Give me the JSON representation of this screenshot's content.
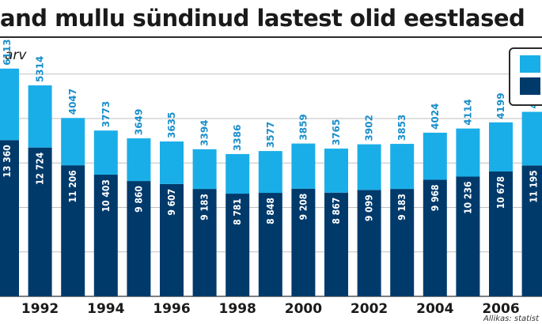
{
  "title": "and mullu sündinud lastest olid eestlased",
  "unit_label": "arv",
  "source": "Allikas: statist",
  "chart_data": {
    "type": "bar",
    "stacked": true,
    "categories": [
      "1991",
      "1992",
      "1993",
      "1994",
      "1995",
      "1996",
      "1997",
      "1998",
      "1999",
      "2000",
      "2001",
      "2002",
      "2003",
      "2004",
      "2005",
      "2006",
      "2007"
    ],
    "x_tick_labels": [
      "1992",
      "1994",
      "1996",
      "1998",
      "2000",
      "2002",
      "2004",
      "2006"
    ],
    "series": [
      {
        "values": [
          13360,
          12724,
          11206,
          10403,
          9860,
          9607,
          9183,
          8781,
          8848,
          9208,
          8867,
          9099,
          9183,
          9968,
          10236,
          10678,
          11195
        ],
        "color": "#003a6b"
      },
      {
        "values": [
          6113,
          5314,
          4047,
          3773,
          3649,
          3635,
          3394,
          3386,
          3577,
          3859,
          3765,
          3902,
          3853,
          4024,
          4114,
          4199,
          4580
        ],
        "color": "#1aaee8"
      }
    ],
    "value_labels": {
      "bottom": [
        "13 360",
        "12 724",
        "11 206",
        "10 403",
        "9 860",
        "9 607",
        "9 183",
        "8 781",
        "8 848",
        "9 208",
        "8 867",
        "9 099",
        "9 183",
        "9 968",
        "10 236",
        "10 678",
        "11 195"
      ],
      "top": [
        "6113",
        "5314",
        "4047",
        "3773",
        "3649",
        "3635",
        "3394",
        "3386",
        "3577",
        "3859",
        "3765",
        "3902",
        "3853",
        "4024",
        "4114",
        "4199",
        "4580"
      ]
    },
    "ylim": [
      0,
      20000
    ],
    "grid": true,
    "legend_position": "top-right"
  }
}
